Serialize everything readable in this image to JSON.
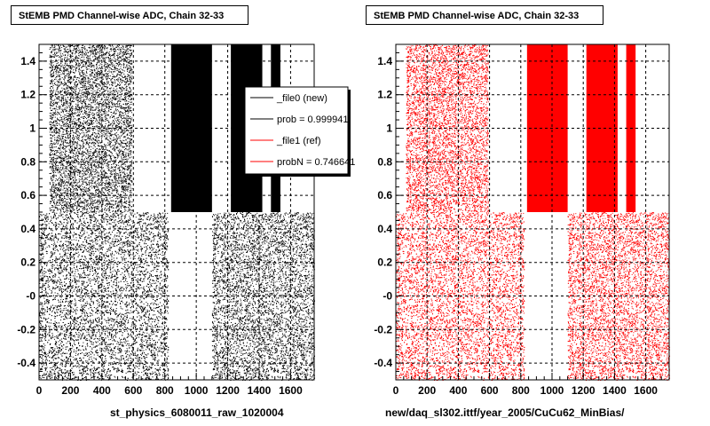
{
  "chart_data": [
    {
      "type": "scatter",
      "title": "StEMB PMD Channel-wise ADC, Chain 32-33",
      "xlabel": "st_physics_6080011_raw_1020004",
      "ylabel": "",
      "xlim": [
        0,
        1750
      ],
      "ylim": [
        -0.5,
        1.5
      ],
      "x_ticks": [
        "0",
        "200",
        "400",
        "600",
        "800",
        "1000",
        "1200",
        "1400",
        "1600"
      ],
      "y_ticks": [
        "-0.4",
        "-0.2",
        "-0",
        "0.2",
        "0.4",
        "0.6",
        "0.8",
        "1",
        "1.2",
        "1.4"
      ],
      "grid": true,
      "marker_color": "#000000",
      "bands_upper": [
        [
          65,
          590,
          "sparse"
        ],
        [
          840,
          1100,
          "dense"
        ],
        [
          1220,
          1420,
          "dense"
        ],
        [
          1475,
          1535,
          "dense"
        ]
      ],
      "bands_lower": [
        [
          0,
          820,
          "sparse"
        ],
        [
          1100,
          1750,
          "sparse"
        ]
      ],
      "legend": {
        "placement": "top-right",
        "entries": [
          {
            "label": "_file0 (new)",
            "color": "#000000"
          },
          {
            "label": "prob = 0.999941",
            "color": "#000000"
          },
          {
            "label": "_file1 (ref)",
            "color": "#ff0000"
          },
          {
            "label": "probN = 0.746641",
            "color": "#ff0000"
          }
        ]
      }
    },
    {
      "type": "scatter",
      "title": "StEMB PMD Channel-wise ADC, Chain 32-33",
      "xlabel": "new/daq_sl302.ittf/year_2005/CuCu62_MinBias/",
      "ylabel": "",
      "xlim": [
        0,
        1750
      ],
      "ylim": [
        -0.5,
        1.5
      ],
      "x_ticks": [
        "0",
        "200",
        "400",
        "600",
        "800",
        "1000",
        "1200",
        "1400",
        "1600"
      ],
      "y_ticks": [
        "-0.4",
        "-0.2",
        "-0",
        "0.2",
        "0.4",
        "0.6",
        "0.8",
        "1",
        "1.2",
        "1.4"
      ],
      "grid": true,
      "marker_color": "#ff0000",
      "bands_upper": [
        [
          65,
          590,
          "sparse"
        ],
        [
          840,
          1100,
          "dense"
        ],
        [
          1220,
          1420,
          "dense"
        ],
        [
          1475,
          1535,
          "dense"
        ]
      ],
      "bands_lower": [
        [
          0,
          820,
          "sparse"
        ],
        [
          1100,
          1750,
          "sparse"
        ]
      ]
    }
  ]
}
